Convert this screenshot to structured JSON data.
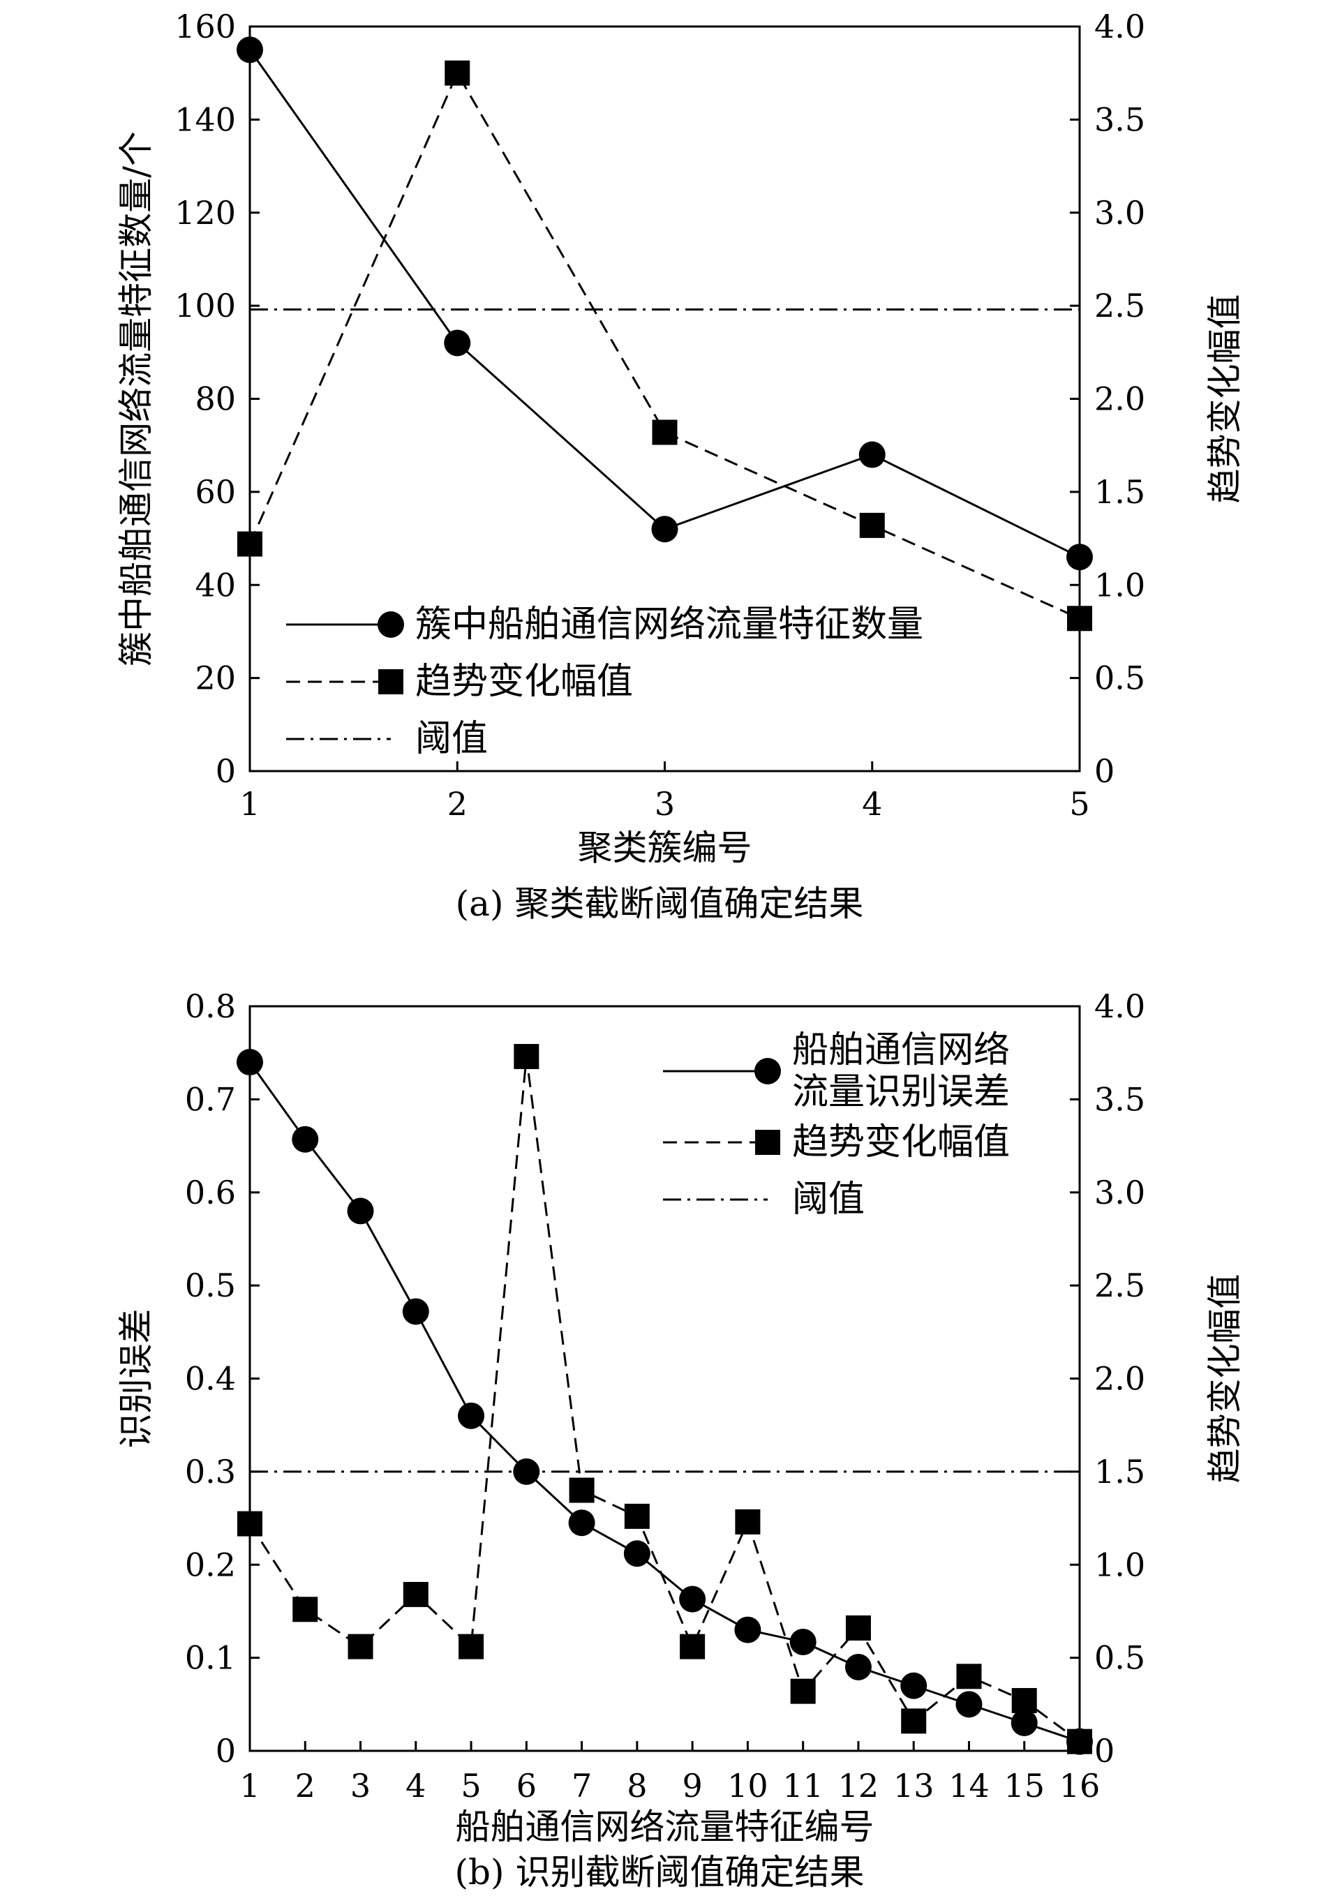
{
  "chart_data": [
    {
      "type": "line",
      "caption": "(a) 聚类截断阈值确定结果",
      "xlabel": "聚类簇编号",
      "ylabel_left": "簇中船舶通信网络流量特征数量/个",
      "ylabel_right": "趋势变化幅值",
      "x": [
        1,
        2,
        3,
        4,
        5
      ],
      "x_ticks": [
        "1",
        "2",
        "3",
        "4",
        "5"
      ],
      "xlim": [
        1,
        5
      ],
      "ylim_left": [
        0,
        160
      ],
      "y_left_ticks": [
        "0",
        "20",
        "40",
        "60",
        "80",
        "100",
        "120",
        "140",
        "160"
      ],
      "ylim_right": [
        0,
        4.0
      ],
      "y_right_ticks": [
        "0",
        "0.5",
        "1.0",
        "1.5",
        "2.0",
        "2.5",
        "3.0",
        "3.5",
        "4.0"
      ],
      "series": [
        {
          "name": "簇中船舶通信网络流量特征数量",
          "axis": "left",
          "style": "solid",
          "marker": "circle",
          "values": [
            155,
            92,
            52,
            68,
            46
          ]
        },
        {
          "name": "趋势变化幅值",
          "axis": "right",
          "style": "dashed",
          "marker": "square",
          "values": [
            1.22,
            3.75,
            1.82,
            1.32,
            0.82
          ]
        },
        {
          "name": "阈值",
          "axis": "right",
          "style": "dashdot",
          "marker": "none",
          "values": [
            2.48,
            2.48,
            2.48,
            2.48,
            2.48
          ]
        }
      ],
      "legend_position": "lower-left"
    },
    {
      "type": "line",
      "caption": "(b) 识别截断阈值确定结果",
      "xlabel": "船舶通信网络流量特征编号",
      "ylabel_left": "识别误差",
      "ylabel_right": "趋势变化幅值",
      "x": [
        1,
        2,
        3,
        4,
        5,
        6,
        7,
        8,
        9,
        10,
        11,
        12,
        13,
        14,
        15,
        16
      ],
      "x_ticks": [
        "1",
        "2",
        "3",
        "4",
        "5",
        "6",
        "7",
        "8",
        "9",
        "10",
        "11",
        "12",
        "13",
        "14",
        "15",
        "16"
      ],
      "xlim": [
        1,
        16
      ],
      "ylim_left": [
        0,
        0.8
      ],
      "y_left_ticks": [
        "0",
        "0.1",
        "0.2",
        "0.3",
        "0.4",
        "0.5",
        "0.6",
        "0.7",
        "0.8"
      ],
      "ylim_right": [
        0,
        4.0
      ],
      "y_right_ticks": [
        "0",
        "0.5",
        "1.0",
        "1.5",
        "2.0",
        "2.5",
        "3.0",
        "3.5",
        "4.0"
      ],
      "series": [
        {
          "name": "船舶通信网络流量识别误差",
          "legend_lines": [
            "船舶通信网络",
            "流量识别误差"
          ],
          "axis": "left",
          "style": "solid",
          "marker": "circle",
          "values": [
            0.74,
            0.657,
            0.58,
            0.472,
            0.36,
            0.3,
            0.245,
            0.212,
            0.163,
            0.13,
            0.117,
            0.09,
            0.07,
            0.05,
            0.03,
            0.01
          ]
        },
        {
          "name": "趋势变化幅值",
          "axis": "right",
          "style": "dashed",
          "marker": "square",
          "values": [
            1.22,
            0.76,
            0.56,
            0.84,
            0.56,
            3.73,
            1.4,
            1.26,
            0.56,
            1.23,
            0.32,
            0.66,
            0.16,
            0.4,
            0.27,
            0.05
          ]
        },
        {
          "name": "阈值",
          "axis": "right",
          "style": "dashdot",
          "marker": "none",
          "values": [
            1.5,
            1.5,
            1.5,
            1.5,
            1.5,
            1.5,
            1.5,
            1.5,
            1.5,
            1.5,
            1.5,
            1.5,
            1.5,
            1.5,
            1.5,
            1.5
          ]
        }
      ],
      "legend_position": "top-right"
    }
  ]
}
